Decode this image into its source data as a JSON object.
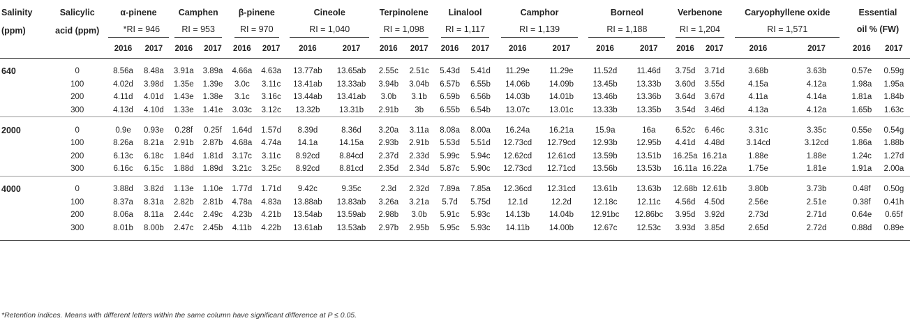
{
  "header": {
    "salinity": [
      "Salinity",
      "(ppm)"
    ],
    "acid": [
      "Salicylic",
      "acid (ppm)"
    ],
    "compounds": [
      {
        "name": "α-pinene",
        "ri": "*RI = 946"
      },
      {
        "name": "Camphen",
        "ri": "RI = 953"
      },
      {
        "name": "β-pinene",
        "ri": "RI = 970"
      },
      {
        "name": "Cineole",
        "ri": "RI = 1,040"
      },
      {
        "name": "Terpinolene",
        "ri": "RI = 1,098"
      },
      {
        "name": "Linalool",
        "ri": "RI = 1,117"
      },
      {
        "name": "Camphor",
        "ri": "RI = 1,139"
      },
      {
        "name": "Borneol",
        "ri": "RI = 1,188"
      },
      {
        "name": "Verbenone",
        "ri": "RI = 1,204"
      },
      {
        "name": "Caryophyllene oxide",
        "ri": "RI = 1,571"
      },
      {
        "name": "Essential",
        "ri": "oil % (FW)"
      }
    ],
    "years": [
      "2016",
      "2017"
    ]
  },
  "groups": [
    {
      "salinity": "640",
      "rows": [
        {
          "acid": "0",
          "values": [
            "8.56a",
            "8.48a",
            "3.91a",
            "3.89a",
            "4.66a",
            "4.63a",
            "13.77ab",
            "13.65ab",
            "2.55c",
            "2.51c",
            "5.43d",
            "5.41d",
            "11.29e",
            "11.29e",
            "11.52d",
            "11.46d",
            "3.75d",
            "3.71d",
            "3.68b",
            "3.63b",
            "0.57e",
            "0.59g"
          ]
        },
        {
          "acid": "100",
          "values": [
            "4.02d",
            "3.98d",
            "1.35e",
            "1.39e",
            "3.0c",
            "3.11c",
            "13.41ab",
            "13.33ab",
            "3.94b",
            "3.04b",
            "6.57b",
            "6.55b",
            "14.06b",
            "14.09b",
            "13.45b",
            "13.33b",
            "3.60d",
            "3.55d",
            "4.15a",
            "4.12a",
            "1.98a",
            "1.95a"
          ]
        },
        {
          "acid": "200",
          "values": [
            "4.11d",
            "4.01d",
            "1.43e",
            "1.38e",
            "3.1c",
            "3.16c",
            "13.44ab",
            "13.41ab",
            "3.0b",
            "3.1b",
            "6.59b",
            "6.56b",
            "14.03b",
            "14.01b",
            "13.46b",
            "13.36b",
            "3.64d",
            "3.67d",
            "4.11a",
            "4.14a",
            "1.81a",
            "1.84b"
          ]
        },
        {
          "acid": "300",
          "values": [
            "4.13d",
            "4.10d",
            "1.33e",
            "1.41e",
            "3.03c",
            "3.12c",
            "13.32b",
            "13.31b",
            "2.91b",
            "3b",
            "6.55b",
            "6.54b",
            "13.07c",
            "13.01c",
            "13.33b",
            "13.35b",
            "3.54d",
            "3.46d",
            "4.13a",
            "4.12a",
            "1.65b",
            "1.63c"
          ]
        }
      ]
    },
    {
      "salinity": "2000",
      "rows": [
        {
          "acid": "0",
          "values": [
            "0.9e",
            "0.93e",
            "0.28f",
            "0.25f",
            "1.64d",
            "1.57d",
            "8.39d",
            "8.36d",
            "3.20a",
            "3.11a",
            "8.08a",
            "8.00a",
            "16.24a",
            "16.21a",
            "15.9a",
            "16a",
            "6.52c",
            "6.46c",
            "3.31c",
            "3.35c",
            "0.55e",
            "0.54g"
          ]
        },
        {
          "acid": "100",
          "values": [
            "8.26a",
            "8.21a",
            "2.91b",
            "2.87b",
            "4.68a",
            "4.74a",
            "14.1a",
            "14.15a",
            "2.93b",
            "2.91b",
            "5.53d",
            "5.51d",
            "12.73cd",
            "12.79cd",
            "12.93b",
            "12.95b",
            "4.41d",
            "4.48d",
            "3.14cd",
            "3.12cd",
            "1.86a",
            "1.88b"
          ]
        },
        {
          "acid": "200",
          "values": [
            "6.13c",
            "6.18c",
            "1.84d",
            "1.81d",
            "3.17c",
            "3.11c",
            "8.92cd",
            "8.84cd",
            "2.37d",
            "2.33d",
            "5.99c",
            "5.94c",
            "12.62cd",
            "12.61cd",
            "13.59b",
            "13.51b",
            "16.25a",
            "16.21a",
            "1.88e",
            "1.88e",
            "1.24c",
            "1.27d"
          ]
        },
        {
          "acid": "300",
          "values": [
            "6.16c",
            "6.15c",
            "1.88d",
            "1.89d",
            "3.21c",
            "3.25c",
            "8.92cd",
            "8.81cd",
            "2.35d",
            "2.34d",
            "5.87c",
            "5.90c",
            "12.73cd",
            "12.71cd",
            "13.56b",
            "13.53b",
            "16.11a",
            "16.22a",
            "1.75e",
            "1.81e",
            "1.91a",
            "2.00a"
          ]
        }
      ]
    },
    {
      "salinity": "4000",
      "rows": [
        {
          "acid": "0",
          "values": [
            "3.88d",
            "3.82d",
            "1.13e",
            "1.10e",
            "1.77d",
            "1.71d",
            "9.42c",
            "9.35c",
            "2.3d",
            "2.32d",
            "7.89a",
            "7.85a",
            "12.36cd",
            "12.31cd",
            "13.61b",
            "13.63b",
            "12.68b",
            "12.61b",
            "3.80b",
            "3.73b",
            "0.48f",
            "0.50g"
          ]
        },
        {
          "acid": "100",
          "values": [
            "8.37a",
            "8.31a",
            "2.82b",
            "2.81b",
            "4.78a",
            "4.83a",
            "13.88ab",
            "13.83ab",
            "3.26a",
            "3.21a",
            "5.7d",
            "5.75d",
            "12.1d",
            "12.2d",
            "12.18c",
            "12.11c",
            "4.56d",
            "4.50d",
            "2.56e",
            "2.51e",
            "0.38f",
            "0.41h"
          ]
        },
        {
          "acid": "200",
          "values": [
            "8.06a",
            "8.11a",
            "2.44c",
            "2.49c",
            "4.23b",
            "4.21b",
            "13.54ab",
            "13.59ab",
            "2.98b",
            "3.0b",
            "5.91c",
            "5.93c",
            "14.13b",
            "14.04b",
            "12.91bc",
            "12.86bc",
            "3.95d",
            "3.92d",
            "2.73d",
            "2.71d",
            "0.64e",
            "0.65f"
          ]
        },
        {
          "acid": "300",
          "values": [
            "8.01b",
            "8.00b",
            "2.47c",
            "2.45b",
            "4.11b",
            "4.22b",
            "13.61ab",
            "13.53ab",
            "2.97b",
            "2.95b",
            "5.95c",
            "5.93c",
            "14.11b",
            "14.00b",
            "12.67c",
            "12.53c",
            "3.93d",
            "3.85d",
            "2.65d",
            "2.72d",
            "0.88d",
            "0.89e"
          ]
        }
      ]
    }
  ],
  "footnote": "*Retention indices. Means with different letters within the same column have significant difference at P ≤ 0.05."
}
